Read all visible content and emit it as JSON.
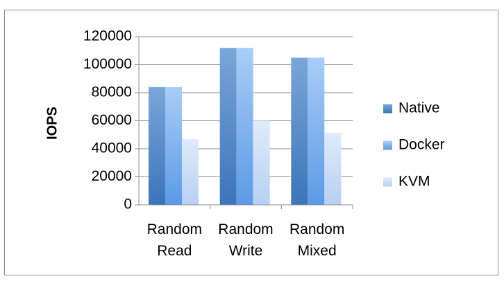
{
  "chart_data": {
    "type": "bar",
    "title": "",
    "xlabel": "",
    "ylabel": "IOPS",
    "ylim": [
      0,
      120000
    ],
    "yticks": [
      0,
      20000,
      40000,
      60000,
      80000,
      100000,
      120000
    ],
    "grid": true,
    "legend_position": "right",
    "categories": [
      [
        "Random",
        "Read"
      ],
      [
        "Random",
        "Write"
      ],
      [
        "Random",
        "Mixed"
      ]
    ],
    "series": [
      {
        "name": "Native",
        "color": "#4f86c6",
        "values": [
          84000,
          112000,
          105000
        ]
      },
      {
        "name": "Docker",
        "color": "#79b1ef",
        "values": [
          84000,
          112000,
          105000
        ]
      },
      {
        "name": "KVM",
        "color": "#c9dcf7",
        "values": [
          47000,
          60000,
          51500
        ]
      }
    ]
  }
}
